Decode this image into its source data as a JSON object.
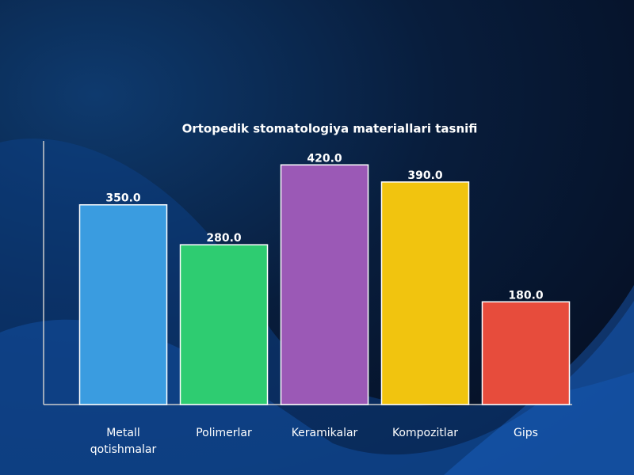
{
  "chart_data": {
    "type": "bar",
    "title": "Ortopedik stomatologiya materiallari tasnifi",
    "categories": [
      "Metall qotishmalar",
      "Polimerlar",
      "Keramikalar",
      "Kompozitlar",
      "Gips"
    ],
    "values": [
      350,
      280,
      420,
      390,
      180
    ],
    "value_labels": [
      "350.0",
      "280.0",
      "420.0",
      "390.0",
      "180.0"
    ],
    "colors": [
      "#3a9ce0",
      "#2ecc71",
      "#9b59b6",
      "#f1c40f",
      "#e74c3c"
    ],
    "ylim": [
      0,
      462
    ]
  }
}
